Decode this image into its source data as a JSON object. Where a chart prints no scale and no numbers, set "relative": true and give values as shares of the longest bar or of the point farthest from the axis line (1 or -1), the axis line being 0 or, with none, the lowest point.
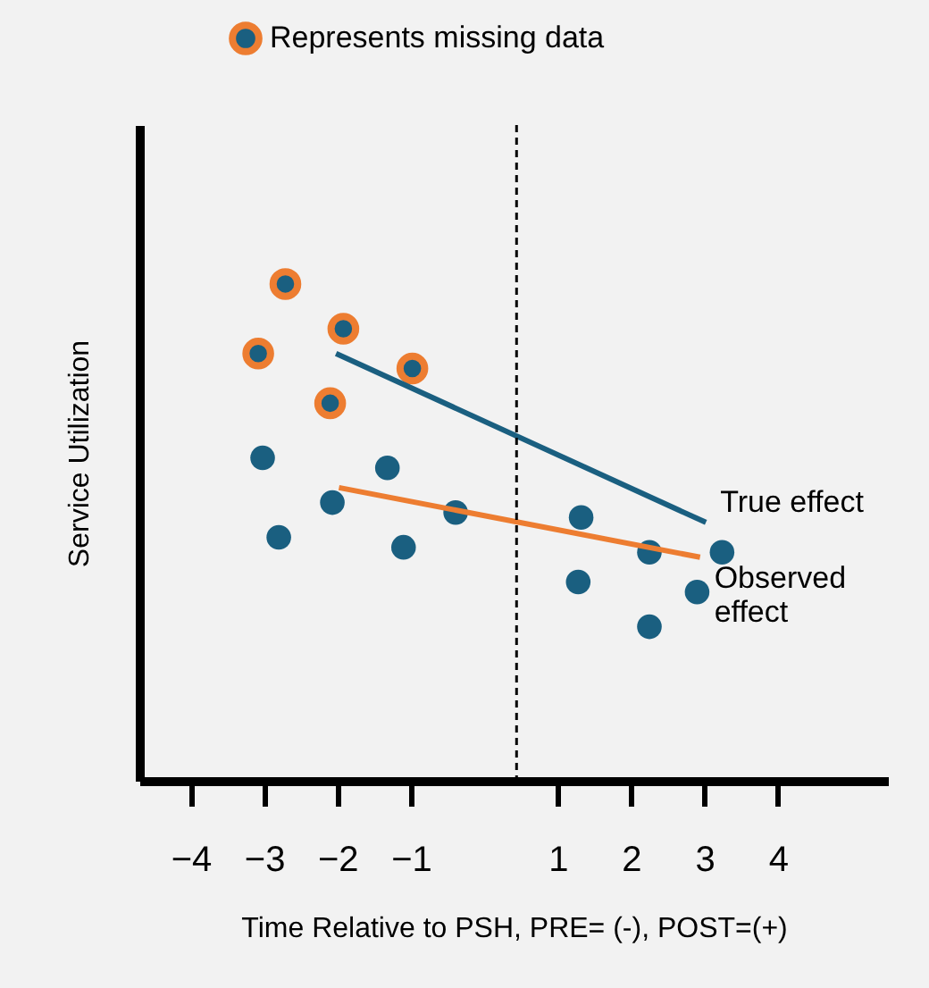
{
  "chart_data": {
    "type": "scatter",
    "xlabel": "Time Relative to PSH, PRE= (-), POST=(+)",
    "ylabel": "Service Utilization",
    "relative": true,
    "xlim": [
      -4.7,
      5.5
    ],
    "xticks": [
      -4,
      -3,
      -2,
      -1,
      1,
      2,
      3,
      4
    ],
    "grid": false,
    "legend": "top",
    "marker": "circle",
    "ref_lines": [
      {
        "axis": "x",
        "value": 0.44,
        "color": "#000000",
        "line_style": "dashed"
      }
    ],
    "series": [
      {
        "name": "Represents missing data",
        "color": "#ed7d31",
        "x": [
          -2.71,
          -1.92,
          -3.08,
          -0.98,
          -2.1
        ],
        "values": [
          1.0,
          0.91,
          0.86,
          0.83,
          0.76
        ]
      },
      {
        "color": "#1a5f80",
        "x": [
          -3.02,
          -1.32,
          -2.07,
          -0.39,
          -2.8,
          -1.1,
          1.32,
          2.25,
          3.24,
          1.28,
          2.9,
          2.25
        ],
        "values": [
          0.65,
          0.63,
          0.56,
          0.54,
          0.49,
          0.47,
          0.53,
          0.46,
          0.46,
          0.4,
          0.38,
          0.31
        ]
      },
      {
        "name": "True effect",
        "type": "line",
        "marker": "none",
        "color": "#1a5f80",
        "x": [
          -2.02,
          3.02
        ],
        "values": [
          0.86,
          0.52
        ]
      },
      {
        "name": "Observed effect",
        "type": "line",
        "marker": "none",
        "color": "#ed7d31",
        "x": [
          -1.98,
          2.94
        ],
        "values": [
          0.59,
          0.45
        ]
      }
    ]
  }
}
